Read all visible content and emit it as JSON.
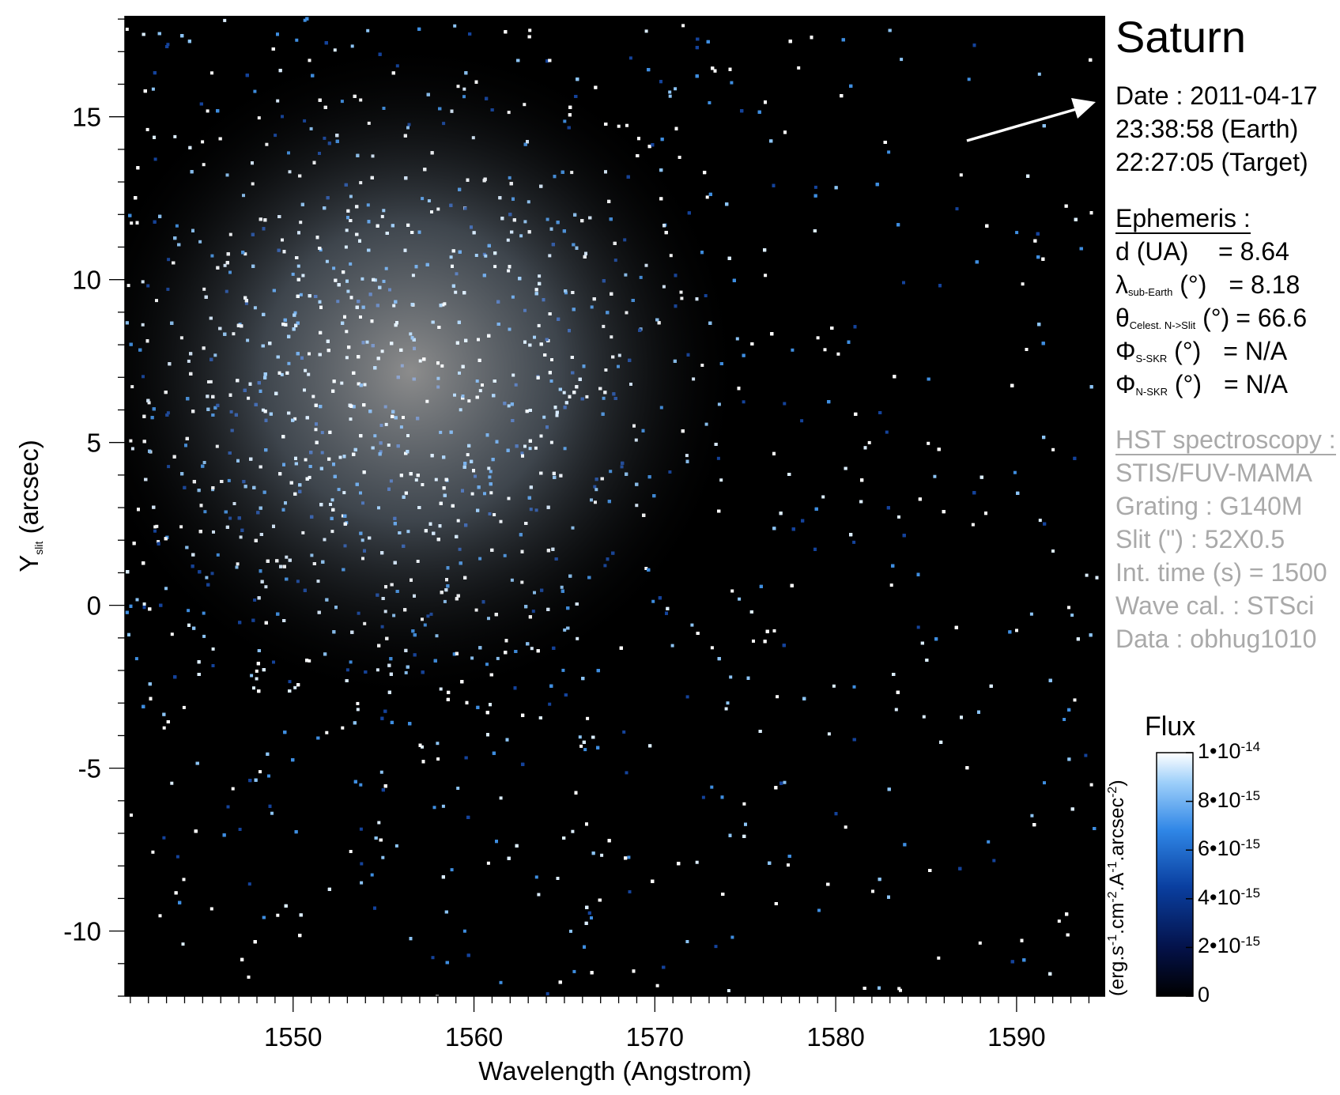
{
  "title": "Saturn",
  "date": {
    "date_line": "Date : 2011-04-17",
    "earth_time": "23:38:58 (Earth)",
    "target_time": "22:27:05 (Target)"
  },
  "ephemeris": {
    "header": "Ephemeris :",
    "rows": [
      {
        "symbol": "d (UA)",
        "sub": "",
        "unit": "",
        "value": "= 8.64"
      },
      {
        "symbol": "λ",
        "sub": "sub-Earth",
        "unit": " (°)",
        "value": "= 8.18"
      },
      {
        "symbol": "θ",
        "sub": "Celest. N->Slit",
        "unit": " (°)",
        "value": "= 66.6"
      },
      {
        "symbol": "Φ",
        "sub": "S-SKR",
        "unit": " (°)",
        "value": "= N/A"
      },
      {
        "symbol": "Φ",
        "sub": "N-SKR",
        "unit": " (°)",
        "value": "= N/A"
      }
    ]
  },
  "hst": {
    "header": "HST spectroscopy :",
    "lines": [
      "STIS/FUV-MAMA",
      "Grating : G140M",
      "Slit (\") : 52X0.5",
      "Int. time (s) = 1500",
      "Wave cal. : STSci",
      "Data : obhug1010"
    ]
  },
  "colorbar": {
    "title": "Flux",
    "unit_parts": [
      "(erg.s",
      "-1",
      ".cm",
      "-2",
      ".A",
      "-1",
      ".arcsec",
      "-2",
      ")"
    ],
    "min": 0,
    "max": 1e-14,
    "ticks": [
      {
        "value": 1e-14,
        "mant": "1•10",
        "exp": "-14"
      },
      {
        "value": 8e-15,
        "mant": "8•10",
        "exp": "-15"
      },
      {
        "value": 6e-15,
        "mant": "6•10",
        "exp": "-15"
      },
      {
        "value": 4e-15,
        "mant": "4•10",
        "exp": "-15"
      },
      {
        "value": 2e-15,
        "mant": "2•10",
        "exp": "-15"
      },
      {
        "value": 0,
        "mant": "0",
        "exp": ""
      }
    ],
    "colors": [
      "#000000",
      "#04124a",
      "#0a3fa0",
      "#2f86e6",
      "#9fd0fa",
      "#ffffff"
    ]
  },
  "chart_data": {
    "type": "heatmap",
    "title": "Saturn",
    "xlabel": "Wavelength (Angstrom)",
    "ylabel_main": "Y",
    "ylabel_sub": "slit",
    "ylabel_rest": " (arcsec)",
    "xlim": [
      1540.7,
      1594.9
    ],
    "ylim": [
      -12,
      18.1
    ],
    "xticks": [
      1550,
      1560,
      1570,
      1580,
      1590
    ],
    "yticks": [
      15,
      10,
      5,
      0,
      -5,
      -10
    ],
    "description_values": {
      "emission_peak_wavelength": 1555,
      "emission_peak_y": 6,
      "peak_flux": 1e-14
    }
  }
}
